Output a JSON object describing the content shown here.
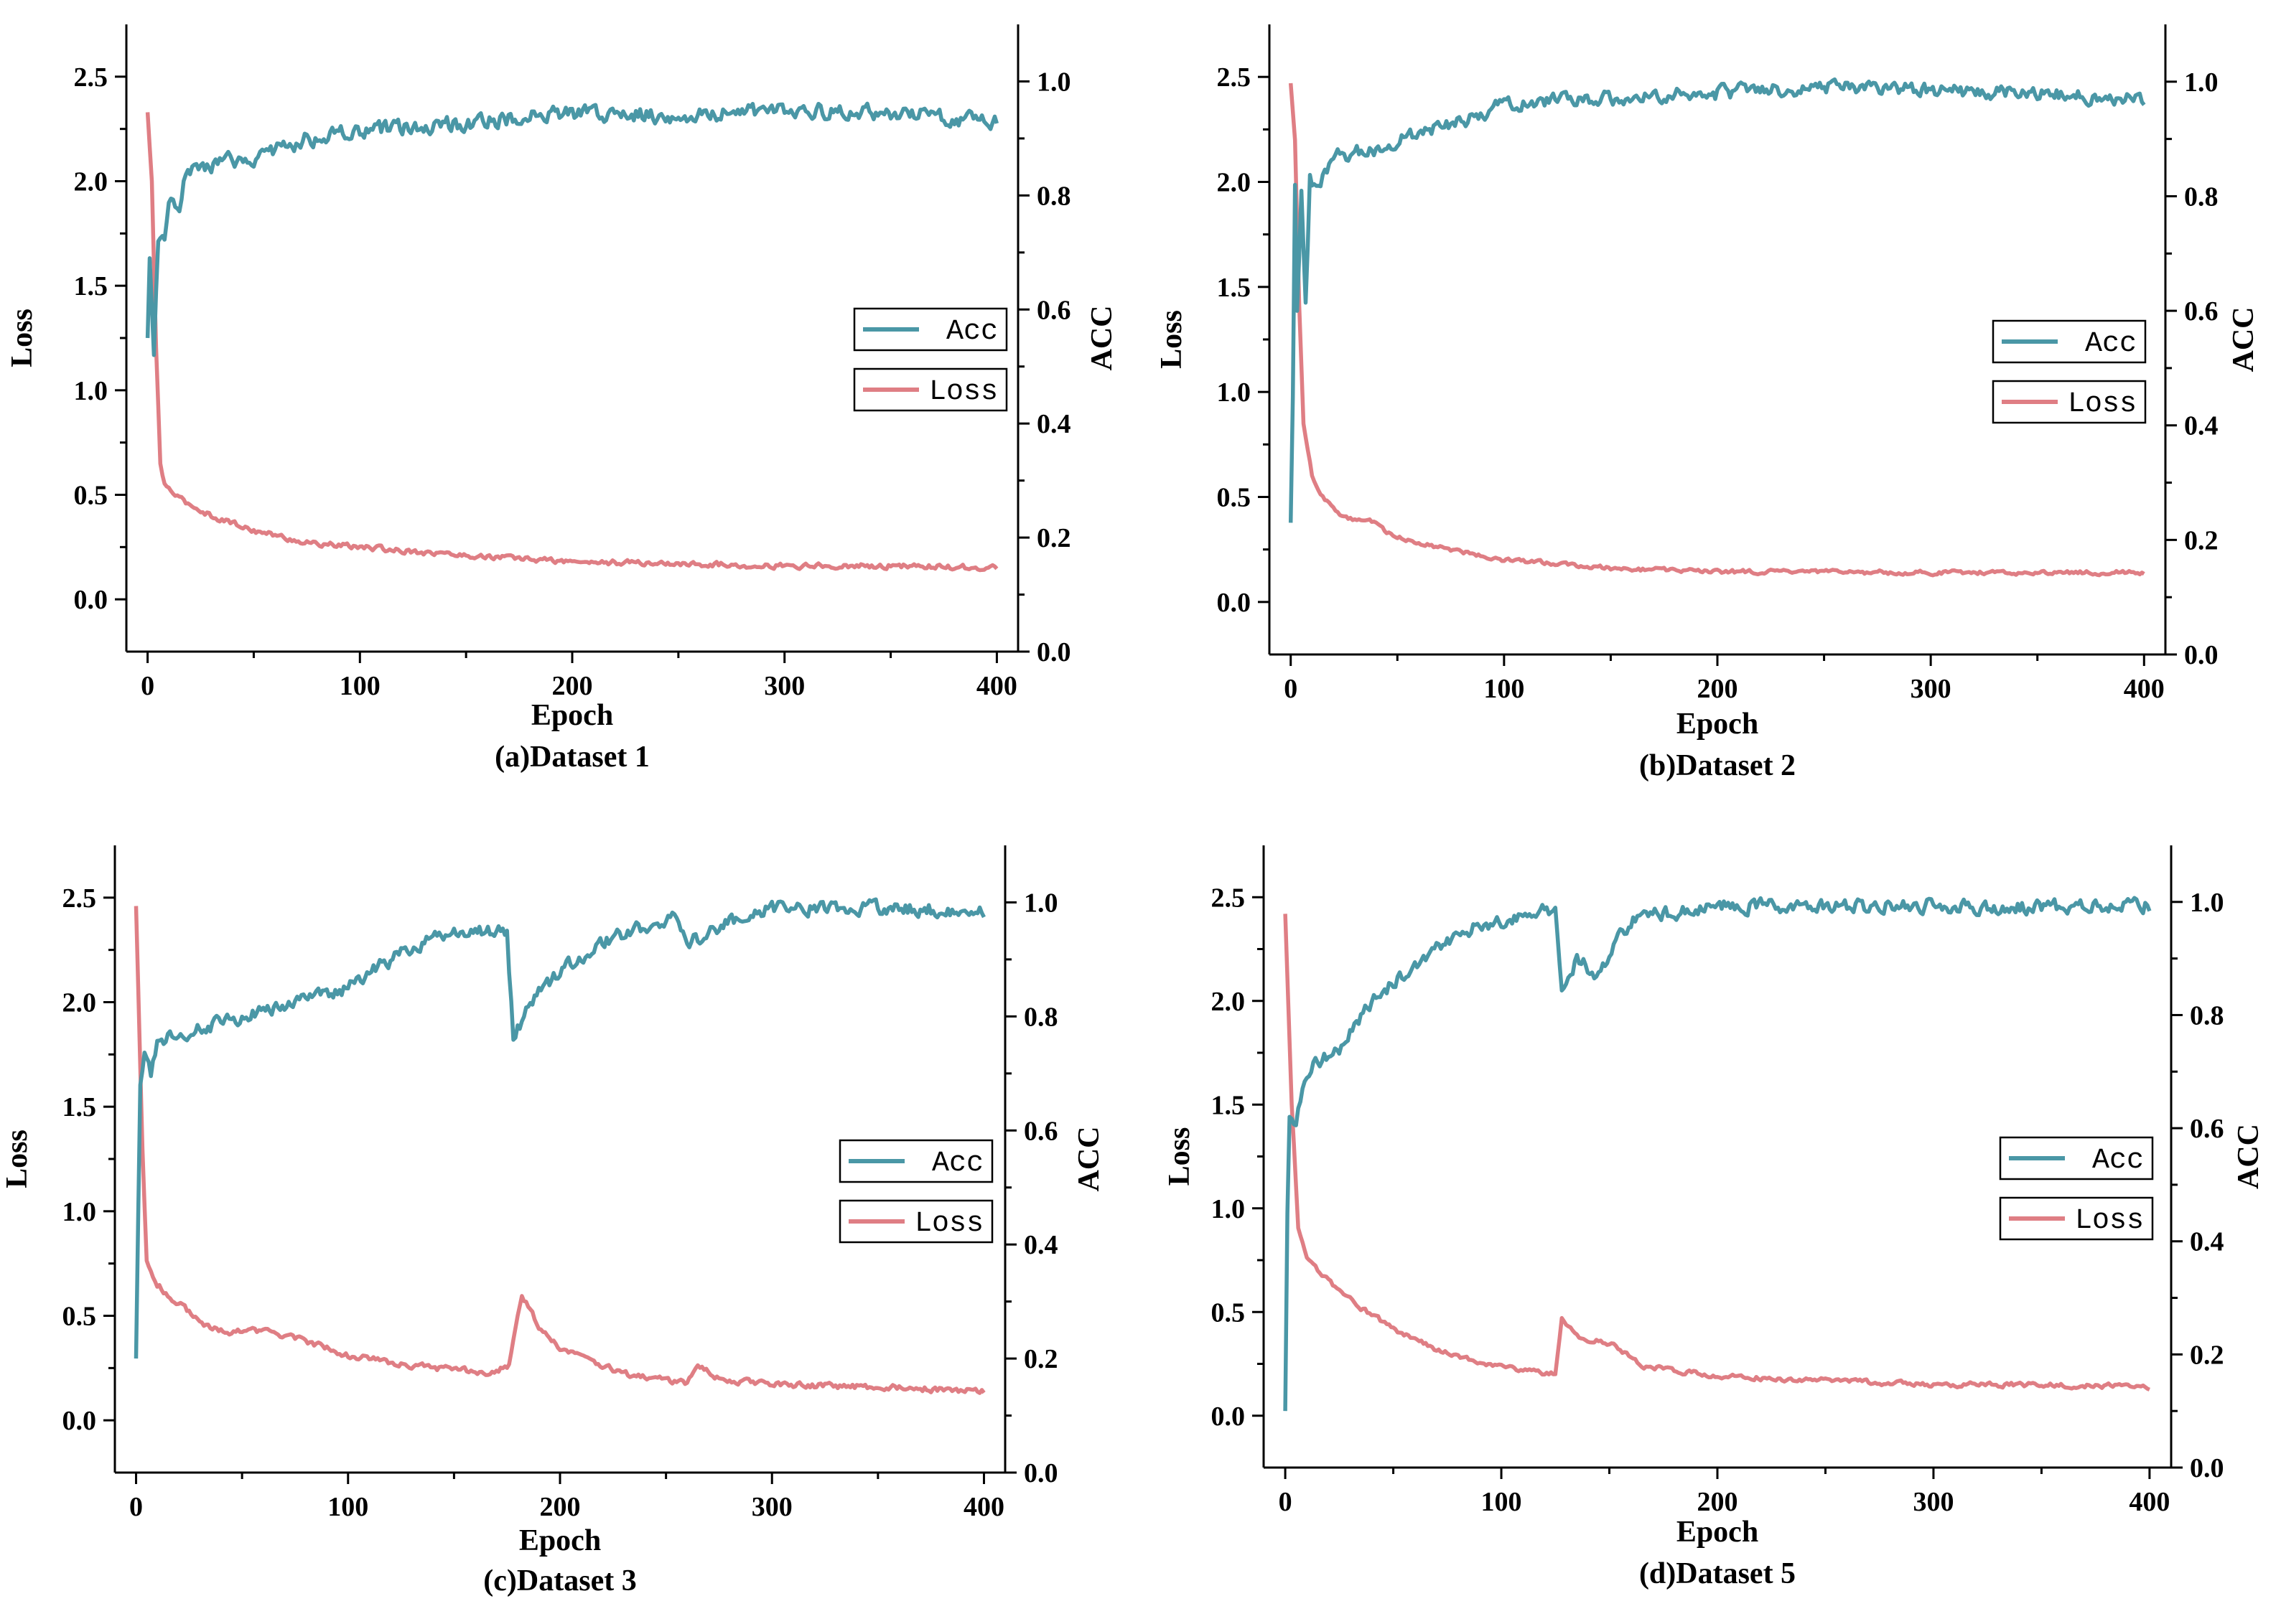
{
  "colors": {
    "acc": "#4a97a6",
    "loss": "#df7e84",
    "axis": "#000000"
  },
  "chart_data": [
    {
      "type": "line",
      "caption": "(a)Dataset 1",
      "xlabel": "Epoch",
      "ylabel": "Loss",
      "y2label": "ACC",
      "xlim": [
        -10,
        410
      ],
      "ylim": [
        -0.25,
        2.75
      ],
      "y2lim": [
        0,
        1.1
      ],
      "xticks": [
        "0",
        "100",
        "200",
        "300",
        "400"
      ],
      "yticks": [
        "0.0",
        "0.5",
        "1.0",
        "1.5",
        "2.0",
        "2.5"
      ],
      "y2ticks": [
        "0.0",
        "0.2",
        "0.4",
        "0.6",
        "0.8",
        "1.0"
      ],
      "legend": [
        "Acc",
        "Loss"
      ],
      "legend_position": "right-center",
      "series": [
        {
          "name": "Acc",
          "axis": "right",
          "noise": 0.022,
          "points": [
            [
              0,
              0.55
            ],
            [
              1,
              0.69
            ],
            [
              3,
              0.52
            ],
            [
              5,
              0.72
            ],
            [
              8,
              0.72
            ],
            [
              10,
              0.79
            ],
            [
              15,
              0.76
            ],
            [
              18,
              0.84
            ],
            [
              25,
              0.85
            ],
            [
              40,
              0.86
            ],
            [
              55,
              0.87
            ],
            [
              75,
              0.9
            ],
            [
              100,
              0.91
            ],
            [
              130,
              0.92
            ],
            [
              160,
              0.93
            ],
            [
              200,
              0.945
            ],
            [
              250,
              0.94
            ],
            [
              300,
              0.95
            ],
            [
              350,
              0.945
            ],
            [
              400,
              0.93
            ]
          ]
        },
        {
          "name": "Loss",
          "axis": "left",
          "noise": 0.02,
          "points": [
            [
              0,
              2.33
            ],
            [
              2,
              2.0
            ],
            [
              4,
              1.2
            ],
            [
              6,
              0.65
            ],
            [
              8,
              0.55
            ],
            [
              15,
              0.48
            ],
            [
              30,
              0.4
            ],
            [
              50,
              0.33
            ],
            [
              75,
              0.27
            ],
            [
              100,
              0.25
            ],
            [
              150,
              0.21
            ],
            [
              200,
              0.18
            ],
            [
              250,
              0.17
            ],
            [
              300,
              0.16
            ],
            [
              350,
              0.16
            ],
            [
              400,
              0.15
            ]
          ]
        }
      ]
    },
    {
      "type": "line",
      "caption": "(b)Dataset 2",
      "xlabel": "Epoch",
      "ylabel": "Loss",
      "y2label": "ACC",
      "xlim": [
        -10,
        410
      ],
      "ylim": [
        -0.25,
        2.75
      ],
      "y2lim": [
        0,
        1.1
      ],
      "xticks": [
        "0",
        "100",
        "200",
        "300",
        "400"
      ],
      "yticks": [
        "0.0",
        "0.5",
        "1.0",
        "1.5",
        "2.0",
        "2.5"
      ],
      "y2ticks": [
        "0.0",
        "0.2",
        "0.4",
        "0.6",
        "0.8",
        "1.0"
      ],
      "legend": [
        "Acc",
        "Loss"
      ],
      "legend_position": "right-center",
      "series": [
        {
          "name": "Acc",
          "axis": "right",
          "noise": 0.02,
          "points": [
            [
              0,
              0.23
            ],
            [
              1,
              0.45
            ],
            [
              2,
              0.82
            ],
            [
              3,
              0.6
            ],
            [
              5,
              0.8
            ],
            [
              7,
              0.6
            ],
            [
              9,
              0.83
            ],
            [
              12,
              0.81
            ],
            [
              20,
              0.87
            ],
            [
              40,
              0.88
            ],
            [
              60,
              0.91
            ],
            [
              80,
              0.93
            ],
            [
              100,
              0.96
            ],
            [
              130,
              0.97
            ],
            [
              150,
              0.97
            ],
            [
              200,
              0.98
            ],
            [
              250,
              0.99
            ],
            [
              300,
              0.985
            ],
            [
              350,
              0.98
            ],
            [
              400,
              0.97
            ]
          ]
        },
        {
          "name": "Loss",
          "axis": "left",
          "noise": 0.015,
          "points": [
            [
              0,
              2.47
            ],
            [
              2,
              2.2
            ],
            [
              4,
              1.4
            ],
            [
              6,
              0.85
            ],
            [
              10,
              0.6
            ],
            [
              15,
              0.5
            ],
            [
              25,
              0.4
            ],
            [
              40,
              0.38
            ],
            [
              45,
              0.33
            ],
            [
              60,
              0.28
            ],
            [
              80,
              0.24
            ],
            [
              100,
              0.2
            ],
            [
              130,
              0.18
            ],
            [
              150,
              0.16
            ],
            [
              200,
              0.145
            ],
            [
              300,
              0.14
            ],
            [
              400,
              0.14
            ]
          ]
        }
      ]
    },
    {
      "type": "line",
      "caption": "(c)Dataset 3",
      "xlabel": "Epoch",
      "ylabel": "Loss",
      "y2label": "ACC",
      "xlim": [
        -10,
        410
      ],
      "ylim": [
        -0.25,
        2.75
      ],
      "y2lim": [
        0,
        1.1
      ],
      "xticks": [
        "0",
        "100",
        "200",
        "300",
        "400"
      ],
      "yticks": [
        "0.0",
        "0.5",
        "1.0",
        "1.5",
        "2.0",
        "2.5"
      ],
      "y2ticks": [
        "0.0",
        "0.2",
        "0.4",
        "0.6",
        "0.8",
        "1.0"
      ],
      "legend": [
        "Acc",
        "Loss"
      ],
      "legend_position": "right-center",
      "series": [
        {
          "name": "Acc",
          "axis": "right",
          "noise": 0.02,
          "points": [
            [
              0,
              0.2
            ],
            [
              1,
              0.45
            ],
            [
              2,
              0.68
            ],
            [
              4,
              0.73
            ],
            [
              7,
              0.7
            ],
            [
              10,
              0.75
            ],
            [
              20,
              0.77
            ],
            [
              40,
              0.79
            ],
            [
              60,
              0.81
            ],
            [
              80,
              0.83
            ],
            [
              100,
              0.85
            ],
            [
              120,
              0.9
            ],
            [
              140,
              0.94
            ],
            [
              160,
              0.95
            ],
            [
              175,
              0.95
            ],
            [
              178,
              0.76
            ],
            [
              185,
              0.82
            ],
            [
              200,
              0.88
            ],
            [
              220,
              0.93
            ],
            [
              240,
              0.96
            ],
            [
              255,
              0.97
            ],
            [
              262,
              0.93
            ],
            [
              275,
              0.96
            ],
            [
              300,
              0.99
            ],
            [
              350,
              0.99
            ],
            [
              400,
              0.985
            ]
          ]
        },
        {
          "name": "Loss",
          "axis": "left",
          "noise": 0.022,
          "points": [
            [
              0,
              2.46
            ],
            [
              3,
              1.3
            ],
            [
              5,
              0.75
            ],
            [
              10,
              0.65
            ],
            [
              20,
              0.56
            ],
            [
              35,
              0.44
            ],
            [
              45,
              0.42
            ],
            [
              60,
              0.43
            ],
            [
              80,
              0.38
            ],
            [
              100,
              0.31
            ],
            [
              130,
              0.26
            ],
            [
              165,
              0.23
            ],
            [
              176,
              0.26
            ],
            [
              182,
              0.6
            ],
            [
              190,
              0.45
            ],
            [
              200,
              0.35
            ],
            [
              230,
              0.22
            ],
            [
              260,
              0.18
            ],
            [
              265,
              0.26
            ],
            [
              275,
              0.2
            ],
            [
              300,
              0.17
            ],
            [
              350,
              0.16
            ],
            [
              400,
              0.14
            ]
          ]
        }
      ]
    },
    {
      "type": "line",
      "caption": "(d)Dataset 5",
      "xlabel": "Epoch",
      "ylabel": "Loss",
      "y2label": "ACC",
      "xlim": [
        -10,
        410
      ],
      "ylim": [
        -0.25,
        2.75
      ],
      "y2lim": [
        0,
        1.1
      ],
      "xticks": [
        "0",
        "100",
        "200",
        "300",
        "400"
      ],
      "yticks": [
        "0.0",
        "0.5",
        "1.0",
        "1.5",
        "2.0",
        "2.5"
      ],
      "y2ticks": [
        "0.0",
        "0.2",
        "0.4",
        "0.6",
        "0.8",
        "1.0"
      ],
      "legend": [
        "Acc",
        "Loss"
      ],
      "legend_position": "right-center",
      "series": [
        {
          "name": "Acc",
          "axis": "right",
          "noise": 0.02,
          "points": [
            [
              0,
              0.1
            ],
            [
              1,
              0.45
            ],
            [
              2,
              0.62
            ],
            [
              5,
              0.61
            ],
            [
              8,
              0.67
            ],
            [
              15,
              0.72
            ],
            [
              25,
              0.74
            ],
            [
              35,
              0.8
            ],
            [
              50,
              0.86
            ],
            [
              70,
              0.92
            ],
            [
              90,
              0.96
            ],
            [
              110,
              0.97
            ],
            [
              125,
              0.99
            ],
            [
              128,
              0.84
            ],
            [
              135,
              0.9
            ],
            [
              145,
              0.87
            ],
            [
              160,
              0.97
            ],
            [
              200,
              0.995
            ],
            [
              250,
              0.99
            ],
            [
              300,
              0.995
            ],
            [
              350,
              0.99
            ],
            [
              400,
              0.995
            ]
          ]
        },
        {
          "name": "Loss",
          "axis": "left",
          "noise": 0.018,
          "points": [
            [
              0,
              2.42
            ],
            [
              3,
              1.5
            ],
            [
              6,
              0.9
            ],
            [
              10,
              0.75
            ],
            [
              20,
              0.65
            ],
            [
              35,
              0.52
            ],
            [
              50,
              0.42
            ],
            [
              70,
              0.32
            ],
            [
              90,
              0.26
            ],
            [
              110,
              0.22
            ],
            [
              125,
              0.2
            ],
            [
              128,
              0.47
            ],
            [
              135,
              0.38
            ],
            [
              150,
              0.35
            ],
            [
              165,
              0.24
            ],
            [
              200,
              0.19
            ],
            [
              250,
              0.17
            ],
            [
              300,
              0.15
            ],
            [
              350,
              0.15
            ],
            [
              400,
              0.14
            ]
          ]
        }
      ]
    }
  ]
}
